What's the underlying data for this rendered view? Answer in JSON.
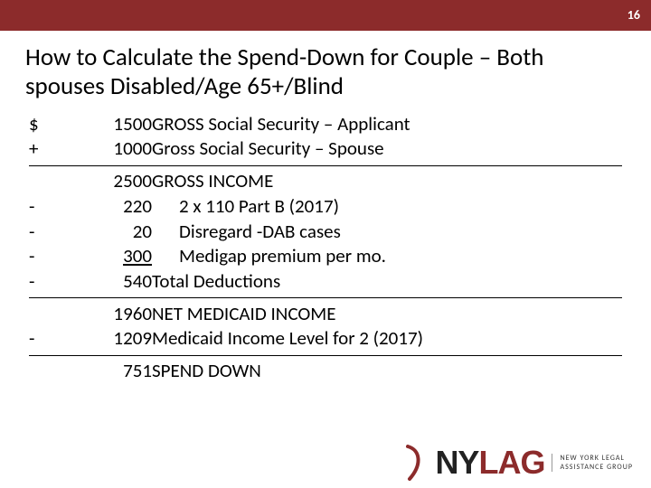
{
  "page_number": "16",
  "title": "How to Calculate the Spend-Down for Couple – Both spouses Disabled/Age 65+/Blind",
  "rows": [
    {
      "op": "$",
      "amount": "1500",
      "label": "GROSS Social Security – Applicant",
      "indent": false,
      "underline": false
    },
    {
      "op": "+",
      "amount": "1000",
      "label": "Gross Social Security – Spouse",
      "indent": false,
      "underline": false
    },
    {
      "op": "",
      "amount": "2500",
      "label": "GROSS INCOME",
      "indent": false,
      "underline": false,
      "divider_above": true
    },
    {
      "op": "-",
      "amount": "220",
      "label": "2 x 110 Part B (2017)",
      "indent": true,
      "underline": false
    },
    {
      "op": "-",
      "amount": "20",
      "label": "Disregard -DAB cases",
      "indent": true,
      "underline": false
    },
    {
      "op": "-",
      "amount": "300",
      "label": "Medigap premium per mo.",
      "indent": true,
      "underline": true
    },
    {
      "op": "-",
      "amount": "540",
      "label": "Total Deductions",
      "indent": false,
      "underline": false
    },
    {
      "op": "",
      "amount": "1960",
      "label": "NET MEDICAID INCOME",
      "indent": false,
      "underline": false,
      "divider_above": true
    },
    {
      "op": "-",
      "amount": "1209",
      "label": "Medicaid Income Level for 2 (2017)",
      "indent": false,
      "underline": false
    },
    {
      "op": "",
      "amount": "751",
      "label": "SPEND DOWN",
      "indent": false,
      "underline": false,
      "divider_above": true
    }
  ],
  "logo": {
    "text_dark": "NY",
    "text_accent": "LAG",
    "sub1": "NEW YORK LEGAL",
    "sub2": "ASSISTANCE GROUP"
  },
  "colors": {
    "bar": "#8c2b2b",
    "text": "#000000",
    "bg": "#ffffff"
  }
}
